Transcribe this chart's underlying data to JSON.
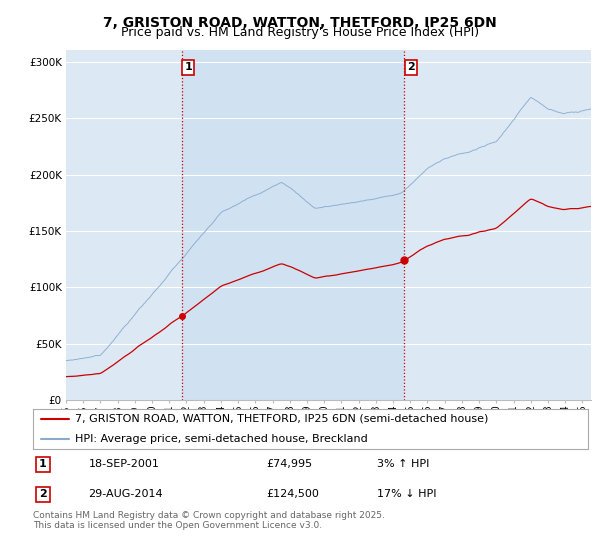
{
  "title": "7, GRISTON ROAD, WATTON, THETFORD, IP25 6DN",
  "subtitle": "Price paid vs. HM Land Registry's House Price Index (HPI)",
  "yticks": [
    0,
    50000,
    100000,
    150000,
    200000,
    250000,
    300000
  ],
  "ytick_labels": [
    "£0",
    "£50K",
    "£100K",
    "£150K",
    "£200K",
    "£250K",
    "£300K"
  ],
  "xlim_start": 1995,
  "xlim_end": 2025.5,
  "ylim": [
    0,
    310000
  ],
  "background_color": "#dce9f5",
  "highlight_bg": "#c8dcf0",
  "grid_color": "#ffffff",
  "line1_color": "#cc0000",
  "line2_color": "#88aacc",
  "transaction1_x": 2001.72,
  "transaction1_y": 74995,
  "transaction2_x": 2014.66,
  "transaction2_y": 124500,
  "vline_color": "#cc0000",
  "legend_line1": "7, GRISTON ROAD, WATTON, THETFORD, IP25 6DN (semi-detached house)",
  "legend_line2": "HPI: Average price, semi-detached house, Breckland",
  "footer": "Contains HM Land Registry data © Crown copyright and database right 2025.\nThis data is licensed under the Open Government Licence v3.0.",
  "title_fontsize": 10,
  "subtitle_fontsize": 9,
  "tick_fontsize": 7.5,
  "legend_fontsize": 8,
  "annotation_fontsize": 8,
  "footer_fontsize": 6.5
}
